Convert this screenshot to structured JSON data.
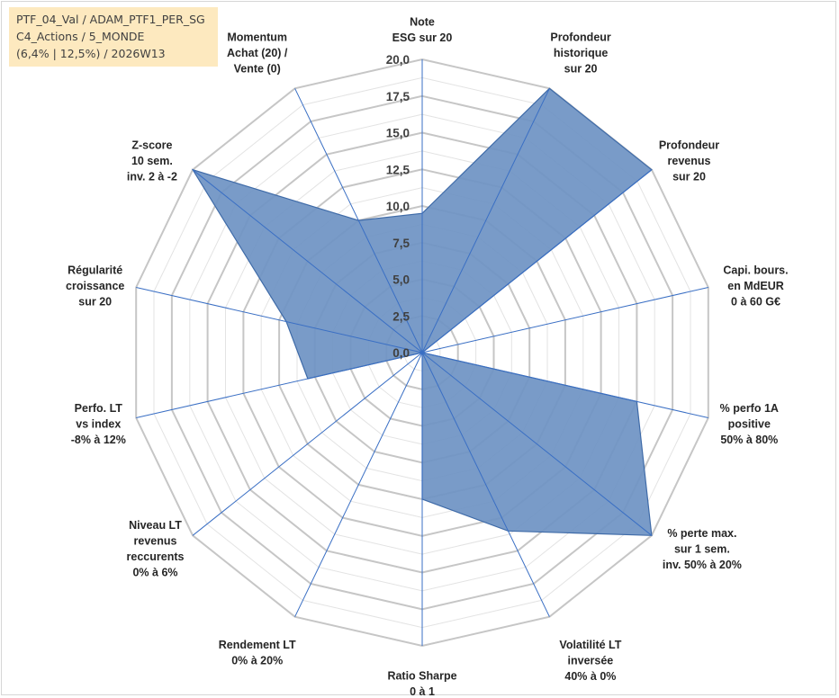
{
  "info": {
    "line1": "PTF_04_Val / ADAM_PTF1_PER_SG",
    "line2": "C4_Actions / 5_MONDE",
    "line3": "(6,4% | 12,5%) / 2026W13"
  },
  "colors": {
    "fill": "#6e93c3",
    "stroke": "#3f6ba8",
    "grid": "#c6c6c6",
    "grid_minor": "#e3e3e3",
    "spoke": "#3a6fc4",
    "info_bg": "#fde9bf"
  },
  "chart_data": {
    "type": "radar",
    "title": "",
    "rmin": 0,
    "rmax": 20,
    "major_step": 2.5,
    "minor_step": 1.25,
    "tick_labels": [
      "0,0",
      "2,5",
      "5,0",
      "7,5",
      "10,0",
      "12,5",
      "15,0",
      "17,5",
      "20,0"
    ],
    "axes": [
      {
        "label": [
          "Note",
          "ESG sur 20"
        ],
        "value": 9.5
      },
      {
        "label": [
          "Profondeur",
          "historique",
          "sur 20"
        ],
        "value": 20
      },
      {
        "label": [
          "Profondeur",
          "revenus",
          "sur 20"
        ],
        "value": 20
      },
      {
        "label": [
          "Capi. bours.",
          "en MdEUR",
          "0 à 60 G€"
        ],
        "value": 0
      },
      {
        "label": [
          "% perfo 1A",
          "positive",
          "50% à 80%"
        ],
        "value": 15
      },
      {
        "label": [
          "% perte max.",
          "sur 1 sem.",
          "inv. 50% à 20%"
        ],
        "value": 20
      },
      {
        "label": [
          "Volatilité LT",
          "inversée",
          "40% à 0%"
        ],
        "value": 13.5
      },
      {
        "label": [
          "Ratio Sharpe",
          "0 à 1"
        ],
        "value": 10
      },
      {
        "label": [
          "Rendement LT",
          "0% à 20%"
        ],
        "value": 0
      },
      {
        "label": [
          "Niveau LT",
          "revenus",
          "reccurents",
          "0% à 6%"
        ],
        "value": 0
      },
      {
        "label": [
          "Perfo. LT",
          "vs index",
          "-8% à 12%"
        ],
        "value": 8
      },
      {
        "label": [
          "Régularité",
          "croissance",
          "sur 20"
        ],
        "value": 9.5
      },
      {
        "label": [
          "Z-score",
          "10 sem.",
          "inv. 2 à -2"
        ],
        "value": 20
      },
      {
        "label": [
          "Momentum",
          "Achat (20) /",
          "Vente (0)"
        ],
        "value": 10
      }
    ],
    "series": [
      {
        "name": "PTF_04_Val"
      }
    ]
  }
}
